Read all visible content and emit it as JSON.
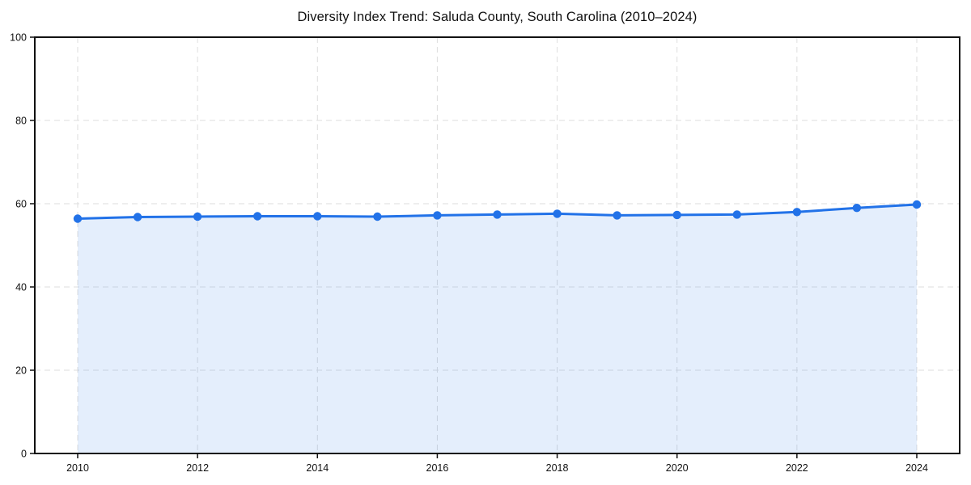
{
  "chart_data": {
    "type": "area",
    "title": "Diversity Index Trend: Saluda County, South Carolina (2010–2024)",
    "xlabel": "",
    "ylabel": "",
    "x": [
      2010,
      2011,
      2012,
      2013,
      2014,
      2015,
      2016,
      2017,
      2018,
      2019,
      2020,
      2021,
      2022,
      2023,
      2024
    ],
    "series": [
      {
        "name": "Diversity Index",
        "values": [
          56.4,
          56.8,
          56.9,
          57.0,
          57.0,
          56.9,
          57.2,
          57.4,
          57.6,
          57.2,
          57.3,
          57.4,
          58.0,
          59.0,
          59.8
        ]
      }
    ],
    "ylim": [
      0,
      100
    ],
    "yticks": [
      0,
      20,
      40,
      60,
      80,
      100
    ],
    "xticks": [
      2010,
      2012,
      2014,
      2016,
      2018,
      2020,
      2022,
      2024
    ],
    "grid": "dashed",
    "legend": "none",
    "colors": {
      "line": "#2272e8",
      "marker": "#2272e8",
      "fill": "rgba(34,114,232,0.12)",
      "grid": "#dedede",
      "frame": "#111111",
      "text": "#111111",
      "background": "#ffffff"
    }
  }
}
